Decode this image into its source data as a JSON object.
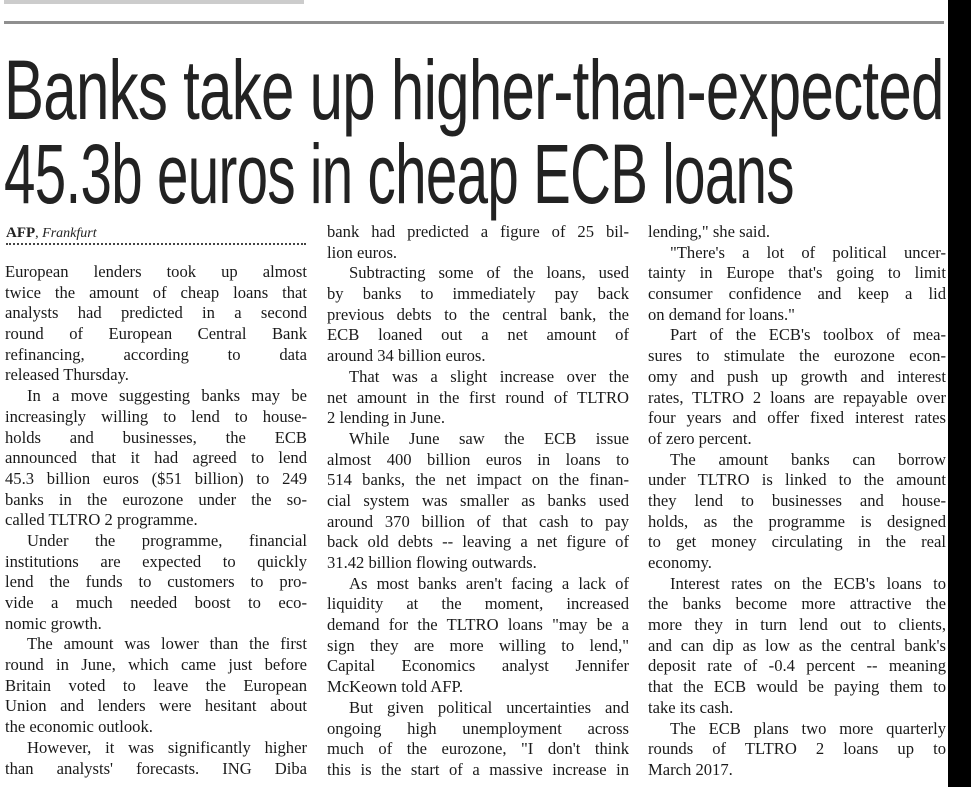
{
  "headline": {
    "line1": "Banks take up higher-than-expected",
    "line2": "45.3b euros in cheap ECB loans"
  },
  "byline": {
    "agency": "AFP",
    "separator": ",",
    "place": "Frankfurt"
  },
  "columns": [
    [
      {
        "t": "European lenders took up almost"
      },
      {
        "t": "twice the amount of cheap loans that"
      },
      {
        "t": "analysts had predicted in a second"
      },
      {
        "t": "round of European Central Bank"
      },
      {
        "t": "refinancing, according to data"
      },
      {
        "t": "released Thursday.",
        "end": true
      },
      {
        "t": "In a move suggesting banks may be",
        "ind": true
      },
      {
        "t": "increasingly willing to lend to house-"
      },
      {
        "t": "holds and businesses, the ECB"
      },
      {
        "t": "announced that it had agreed to lend"
      },
      {
        "t": "45.3 billion euros ($51 billion) to 249"
      },
      {
        "t": "banks in the eurozone under the so-"
      },
      {
        "t": "called TLTRO 2 programme.",
        "end": true
      },
      {
        "t": "Under the programme, financial",
        "ind": true
      },
      {
        "t": "institutions are expected to quickly"
      },
      {
        "t": "lend the funds to customers to pro-"
      },
      {
        "t": "vide a much needed boost to eco-"
      },
      {
        "t": "nomic growth.",
        "end": true
      },
      {
        "t": "The amount was lower than the first",
        "ind": true
      },
      {
        "t": "round in June, which came just before"
      },
      {
        "t": "Britain voted to leave the European"
      },
      {
        "t": "Union and lenders were hesitant about"
      },
      {
        "t": "the economic outlook.",
        "end": true
      },
      {
        "t": "However, it was significantly higher",
        "ind": true
      },
      {
        "t": "than analysts' forecasts. ING Diba"
      }
    ],
    [
      {
        "t": "bank had predicted a figure of 25 bil-"
      },
      {
        "t": "lion euros.",
        "end": true
      },
      {
        "t": "Subtracting some of the loans, used",
        "ind": true
      },
      {
        "t": "by banks to immediately pay back"
      },
      {
        "t": "previous debts to the central bank, the"
      },
      {
        "t": "ECB loaned out a net amount of"
      },
      {
        "t": "around 34 billion euros.",
        "end": true
      },
      {
        "t": "That was a slight increase over the",
        "ind": true
      },
      {
        "t": "net amount in the first round of TLTRO"
      },
      {
        "t": "2 lending in June.",
        "end": true
      },
      {
        "t": "While June saw the ECB issue",
        "ind": true
      },
      {
        "t": "almost 400 billion euros in loans to"
      },
      {
        "t": "514 banks, the net impact on the finan-"
      },
      {
        "t": "cial system was smaller as banks used"
      },
      {
        "t": "around 370 billion of that cash to pay"
      },
      {
        "t": "back old debts -- leaving a net figure of"
      },
      {
        "t": "31.42 billion flowing outwards.",
        "end": true
      },
      {
        "t": "As most banks aren't facing a lack of",
        "ind": true
      },
      {
        "t": "liquidity at the moment, increased"
      },
      {
        "t": "demand for the TLTRO loans \"may be a"
      },
      {
        "t": "sign they are more willing to lend,\""
      },
      {
        "t": "Capital Economics analyst Jennifer"
      },
      {
        "t": "McKeown told AFP.",
        "end": true
      },
      {
        "t": "But given political uncertainties and",
        "ind": true
      },
      {
        "t": "ongoing high unemployment across"
      },
      {
        "t": "much of the eurozone, \"I don't think"
      },
      {
        "t": "this is the start of a massive increase in"
      }
    ],
    [
      {
        "t": "lending,\" she said.",
        "end": true
      },
      {
        "t": "\"There's a lot of political uncer-",
        "ind": true
      },
      {
        "t": "tainty in Europe that's going to limit"
      },
      {
        "t": "consumer confidence and keep a lid"
      },
      {
        "t": "on demand for loans.\"",
        "end": true
      },
      {
        "t": "Part of the ECB's toolbox of mea-",
        "ind": true
      },
      {
        "t": "sures to stimulate the eurozone econ-"
      },
      {
        "t": "omy and push up growth and interest"
      },
      {
        "t": "rates, TLTRO 2 loans are repayable over"
      },
      {
        "t": "four years and offer fixed interest rates"
      },
      {
        "t": "of zero percent.",
        "end": true
      },
      {
        "t": "The amount banks can borrow",
        "ind": true
      },
      {
        "t": "under TLTRO is linked to the amount"
      },
      {
        "t": "they lend to businesses and house-"
      },
      {
        "t": "holds, as the programme is designed"
      },
      {
        "t": "to get money circulating in the real"
      },
      {
        "t": "economy.",
        "end": true
      },
      {
        "t": "Interest rates on the ECB's loans to",
        "ind": true
      },
      {
        "t": "the banks become more attractive the"
      },
      {
        "t": "more they in turn lend out to clients,"
      },
      {
        "t": "and can dip as low as the central bank's"
      },
      {
        "t": "deposit rate of -0.4 percent -- meaning"
      },
      {
        "t": "that the ECB would be paying them to"
      },
      {
        "t": "take its cash.",
        "end": true
      },
      {
        "t": "The ECB plans two more quarterly",
        "ind": true
      },
      {
        "t": "rounds of TLTRO 2 loans up to"
      },
      {
        "t": "March 2017.",
        "end": true
      }
    ]
  ]
}
